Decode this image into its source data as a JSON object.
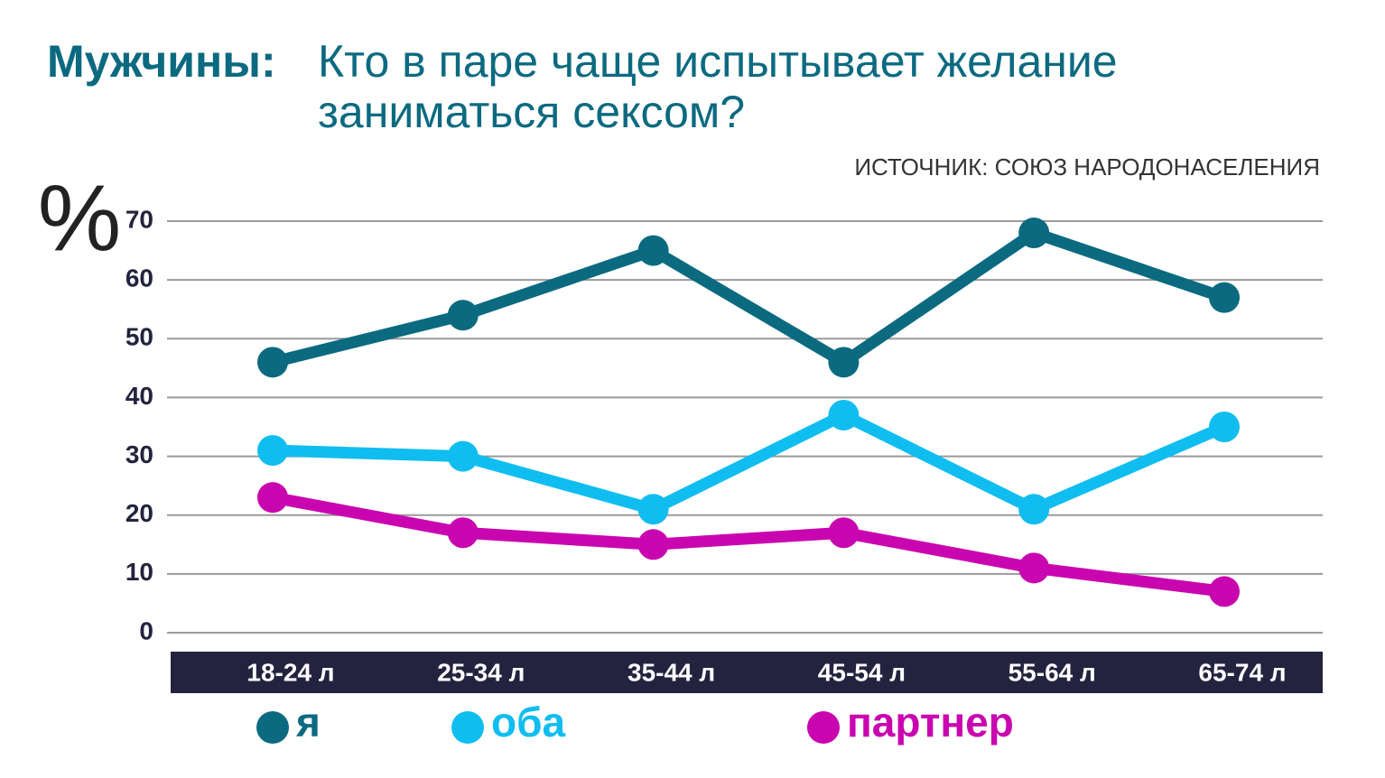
{
  "chart_data": {
    "type": "line",
    "title": "Мужчины:",
    "subtitle": "Кто в паре чаще испытывает желание заниматься сексом?",
    "source": "ИСТОЧНИК: СОЮЗ НАРОДОНАСЕЛЕНИЯ",
    "y_label": "%",
    "categories": [
      "18-24 л",
      "25-34 л",
      "35-44 л",
      "45-54 л",
      "55-64 л",
      "65-74 л"
    ],
    "series": [
      {
        "name": "я",
        "color": "#0b6a80",
        "values": [
          46,
          54,
          65,
          46,
          68,
          57
        ]
      },
      {
        "name": "оба",
        "color": "#10bdf0",
        "values": [
          31,
          30,
          21,
          37,
          21,
          35
        ]
      },
      {
        "name": "партнер",
        "color": "#c905b0",
        "values": [
          23,
          17,
          15,
          17,
          11,
          7
        ]
      }
    ],
    "ylim": [
      0,
      70
    ],
    "yticks": [
      0,
      10,
      20,
      30,
      40,
      50,
      60,
      70
    ],
    "grid": true
  }
}
